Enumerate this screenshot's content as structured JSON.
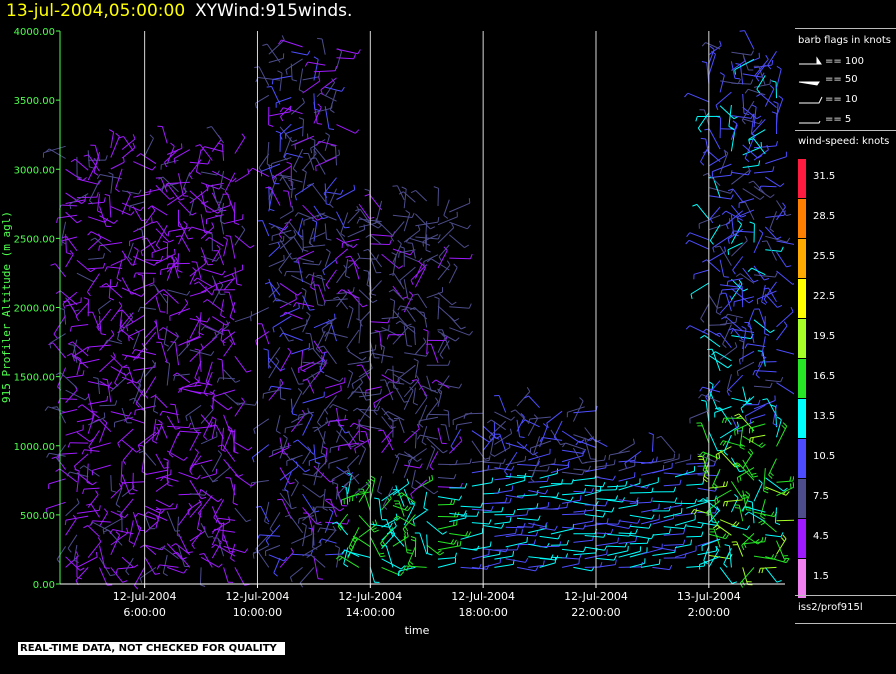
{
  "header": {
    "datetime": "13-jul-2004,05:00:00",
    "title": "XYWind:915winds."
  },
  "legend": {
    "barb_title": "barb flags in knots",
    "barb_flags": [
      {
        "label": "== 100",
        "knots": 100
      },
      {
        "label": "== 50",
        "knots": 50
      },
      {
        "label": "== 10",
        "knots": 10
      },
      {
        "label": "== 5",
        "knots": 5
      }
    ],
    "colorbar_title": "wind-speed: knots",
    "colorbar": [
      {
        "label": "31.5",
        "color": "#ff1a40"
      },
      {
        "label": "28.5",
        "color": "#ff7f00"
      },
      {
        "label": "25.5",
        "color": "#ffaa00"
      },
      {
        "label": "22.5",
        "color": "#ffff00"
      },
      {
        "label": "19.5",
        "color": "#a6ff26"
      },
      {
        "label": "16.5",
        "color": "#26e626"
      },
      {
        "label": "13.5",
        "color": "#00ffff"
      },
      {
        "label": "10.5",
        "color": "#4d4dff"
      },
      {
        "label": "7.5",
        "color": "#4d4d8c"
      },
      {
        "label": "4.5",
        "color": "#a01aff"
      },
      {
        "label": "1.5",
        "color": "#f07ff0"
      }
    ],
    "source": "iss2/prof915l"
  },
  "footer": {
    "qc_banner": "REAL-TIME DATA, NOT CHECKED FOR QUALITY"
  },
  "chart_data": {
    "type": "scatter",
    "subtype": "wind-barb time-height",
    "xlabel": "time",
    "ylabel": "915 Profiler Altitude (m agl)",
    "ylim": [
      0,
      4000
    ],
    "yticks": [
      "0.00",
      "500.00",
      "1000.00",
      "1500.00",
      "2000.00",
      "2500.00",
      "3000.00",
      "3500.00",
      "4000.00"
    ],
    "xlim_hours": [
      3.0,
      28.7
    ],
    "xticks": [
      {
        "hour": 6,
        "date": "12-Jul-2004",
        "time": "6:00:00"
      },
      {
        "hour": 10,
        "date": "12-Jul-2004",
        "time": "10:00:00"
      },
      {
        "hour": 14,
        "date": "12-Jul-2004",
        "time": "14:00:00"
      },
      {
        "hour": 18,
        "date": "12-Jul-2004",
        "time": "18:00:00"
      },
      {
        "hour": 22,
        "date": "12-Jul-2004",
        "time": "22:00:00"
      },
      {
        "hour": 26,
        "date": "13-Jul-2004",
        "time": "2:00:00"
      }
    ],
    "grid": "vertical lines at x ticks",
    "axis_color": "#4cff4c",
    "color_scale_knots": [
      1.5,
      4.5,
      7.5,
      10.5,
      13.5,
      16.5,
      19.5,
      22.5,
      25.5,
      28.5,
      31.5
    ],
    "profile_times_hours": [
      3.2,
      3.6,
      4.0,
      4.4,
      4.8,
      5.2,
      5.6,
      6.0,
      6.4,
      6.8,
      7.2,
      7.6,
      8.0,
      8.4,
      8.8,
      9.2,
      10.4,
      10.8,
      11.2,
      11.6,
      12.0,
      12.4,
      12.8,
      13.2,
      13.6,
      14.0,
      14.4,
      14.8,
      15.2,
      15.6,
      16.0,
      16.4,
      16.8,
      17.2,
      17.6,
      18.0,
      18.4,
      18.8,
      19.2,
      19.6,
      20.0,
      20.4,
      20.8,
      21.2,
      21.6,
      22.0,
      22.4,
      22.8,
      23.2,
      23.6,
      24.0,
      24.4,
      24.8,
      25.2,
      25.6,
      26.0,
      26.4,
      26.8,
      27.2,
      27.6,
      28.0,
      28.4
    ],
    "profiles_summary": [
      {
        "period": "12-Jul 3:00-9:00",
        "top_m": 3200,
        "dominant_knots": "1.5-7.5",
        "dominant_color": "#f07ff0"
      },
      {
        "period": "12-Jul 10:00-13:00",
        "top_m": 4000,
        "dominant_knots": "4.5-10.5",
        "dominant_color": "#a01aff"
      },
      {
        "period": "12-Jul 13:00-17:00",
        "top_m": 2800,
        "dominant_knots": "4.5-16.5",
        "dominant_color": "#a01aff"
      },
      {
        "period": "12-Jul 17:00-22:00",
        "top_m": 1300,
        "dominant_knots": "7.5-16.5",
        "dominant_color": "#4d4dff"
      },
      {
        "period": "12-Jul 22:00-13-Jul 2:00",
        "top_m": 1000,
        "dominant_knots": "7.5-16.5",
        "dominant_color": "#4d4dff"
      },
      {
        "period": "13-Jul 2:00-5:00",
        "top_m": 3900,
        "dominant_knots": "10.5-19.5",
        "dominant_color": "#26e626"
      }
    ]
  }
}
